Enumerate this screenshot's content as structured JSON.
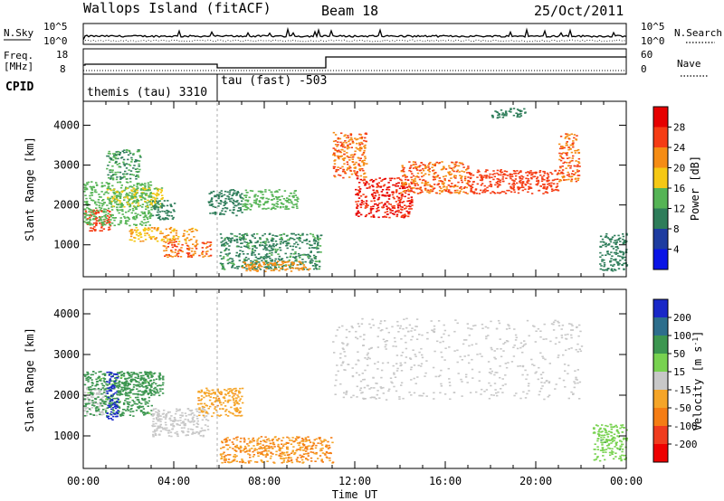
{
  "header": {
    "station": "Wallops Island (fitACF)",
    "beam": "Beam 18",
    "date": "25/Oct/2011"
  },
  "noise_panel": {
    "left_label": "N.Sky",
    "right_label": "N.Search",
    "left_ticks": [
      "10^5",
      "10^0"
    ],
    "right_ticks": [
      "10^5",
      "10^0"
    ]
  },
  "freq_panel": {
    "left_label_top": "Freq.",
    "left_label_bottom": "[MHz]",
    "left_ticks": [
      "18",
      "8"
    ],
    "right_label": "Nave",
    "right_ticks": [
      "60",
      "0"
    ]
  },
  "cpid_panel": {
    "label": "CPID",
    "modes": [
      {
        "name": "themis (tau) 3310",
        "start_hour": 0
      },
      {
        "name": "tau (fast) -503",
        "start_hour": 6
      }
    ]
  },
  "colors": {
    "power": [
      "#0a14e6",
      "#1e3ca0",
      "#2e7d5a",
      "#55b455",
      "#f5c814",
      "#f58c14",
      "#f53c14",
      "#e60000"
    ],
    "velocity": [
      "#ee0000",
      "#f03c1e",
      "#f57d14",
      "#f5a528",
      "#c8c8c8",
      "#78d250",
      "#3c9650",
      "#2d6e8c",
      "#1928c8"
    ]
  },
  "chart_data": [
    {
      "type": "heatmap",
      "name": "power",
      "xlabel": "",
      "ylabel": "Slant Range [km]",
      "xlim": [
        0,
        24
      ],
      "ylim": [
        200,
        4600
      ],
      "y_ticks": [
        1000,
        2000,
        3000,
        4000
      ],
      "colorbar": {
        "label": "Power [dB]",
        "range": [
          0,
          32
        ],
        "ticks": [
          4,
          8,
          12,
          16,
          20,
          24,
          28
        ]
      },
      "echo_regions": [
        {
          "x": [
            0.0,
            1.2
          ],
          "y": [
            1350,
            1900
          ],
          "value": 26
        },
        {
          "x": [
            0.0,
            3.0
          ],
          "y": [
            1500,
            2600
          ],
          "value": 14
        },
        {
          "x": [
            1.0,
            3.5
          ],
          "y": [
            1950,
            2450
          ],
          "value": 16
        },
        {
          "x": [
            1.0,
            2.5
          ],
          "y": [
            2650,
            3400
          ],
          "value": 12
        },
        {
          "x": [
            3.0,
            4.0
          ],
          "y": [
            1650,
            2150
          ],
          "value": 10
        },
        {
          "x": [
            3.5,
            5.6
          ],
          "y": [
            700,
            1100
          ],
          "value": 24
        },
        {
          "x": [
            2.0,
            5.0
          ],
          "y": [
            1100,
            1450
          ],
          "value": 20
        },
        {
          "x": [
            5.5,
            7.0
          ],
          "y": [
            1750,
            2400
          ],
          "value": 10
        },
        {
          "x": [
            7.0,
            9.5
          ],
          "y": [
            1900,
            2400
          ],
          "value": 14
        },
        {
          "x": [
            6.0,
            10.5
          ],
          "y": [
            400,
            1300
          ],
          "value": 11
        },
        {
          "x": [
            7.0,
            10.0
          ],
          "y": [
            350,
            600
          ],
          "value": 22
        },
        {
          "x": [
            11.0,
            12.5
          ],
          "y": [
            2700,
            3850
          ],
          "value": 24
        },
        {
          "x": [
            12.0,
            14.5
          ],
          "y": [
            1700,
            2700
          ],
          "value": 28
        },
        {
          "x": [
            14.0,
            17.0
          ],
          "y": [
            2300,
            3100
          ],
          "value": 24
        },
        {
          "x": [
            17.0,
            21.0
          ],
          "y": [
            2300,
            2900
          ],
          "value": 26
        },
        {
          "x": [
            21.0,
            21.9
          ],
          "y": [
            2600,
            3800
          ],
          "value": 24
        },
        {
          "x": [
            18.0,
            19.5
          ],
          "y": [
            4200,
            4450
          ],
          "value": 10
        },
        {
          "x": [
            22.8,
            24.0
          ],
          "y": [
            350,
            1300
          ],
          "value": 10
        }
      ]
    },
    {
      "type": "heatmap",
      "name": "velocity",
      "xlabel": "Time UT",
      "ylabel": "Slant Range [km]",
      "xlim": [
        0,
        24
      ],
      "ylim": [
        200,
        4600
      ],
      "x_ticks": [
        "00:00",
        "04:00",
        "08:00",
        "12:00",
        "16:00",
        "20:00",
        "00:00"
      ],
      "y_ticks": [
        1000,
        2000,
        3000,
        4000
      ],
      "colorbar": {
        "label": "Velocity [m s^-1]",
        "ticks": [
          "200",
          "100",
          "50",
          "15",
          "-15",
          "-50",
          "-100",
          "-200"
        ]
      },
      "echo_regions": [
        {
          "x": [
            0.0,
            1.0
          ],
          "y": [
            1500,
            2200
          ],
          "value": 0
        },
        {
          "x": [
            0.0,
            3.0
          ],
          "y": [
            1500,
            2600
          ],
          "value": 60
        },
        {
          "x": [
            1.0,
            1.5
          ],
          "y": [
            1400,
            2600
          ],
          "value": 250
        },
        {
          "x": [
            1.5,
            3.5
          ],
          "y": [
            2000,
            2600
          ],
          "value": 80
        },
        {
          "x": [
            3.0,
            5.5
          ],
          "y": [
            1000,
            1700
          ],
          "value": 0
        },
        {
          "x": [
            5.0,
            7.0
          ],
          "y": [
            1500,
            2200
          ],
          "value": -40
        },
        {
          "x": [
            6.0,
            11.0
          ],
          "y": [
            350,
            1000
          ],
          "value": -50
        },
        {
          "x": [
            11.0,
            22.0
          ],
          "y": [
            1900,
            3900
          ],
          "value": 0
        },
        {
          "x": [
            22.5,
            24.0
          ],
          "y": [
            400,
            1300
          ],
          "value": 40
        }
      ]
    }
  ]
}
